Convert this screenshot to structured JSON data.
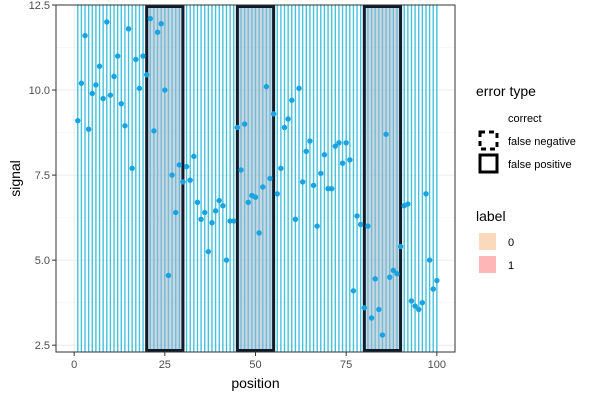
{
  "chart_data": {
    "type": "scatter",
    "xlabel": "position",
    "ylabel": "signal",
    "xlim": [
      -5,
      105
    ],
    "ylim": [
      2.3,
      12.5
    ],
    "x_ticks": [
      0,
      25,
      50,
      75,
      100
    ],
    "y_ticks": [
      2.5,
      5.0,
      7.5,
      10.0,
      12.5
    ],
    "x_tick_labels": [
      "0",
      "25",
      "50",
      "75",
      "100"
    ],
    "y_tick_labels": [
      "2.5",
      "5.0",
      "7.5",
      "10.0",
      "12.5"
    ],
    "grid": true,
    "legend_position": "right",
    "point_color": "#1aa3e0",
    "window_line_color": "#22b8d6",
    "label_0_fill": "#fbd9bd",
    "label_1_fill": "#ffb6b6",
    "highlight_fill": "#9ab6cc",
    "box_color": "#0d1b2a",
    "highlight_intervals": [
      [
        20,
        30
      ],
      [
        45,
        55
      ],
      [
        80,
        90
      ]
    ],
    "points": {
      "x": [
        1,
        2,
        3,
        4,
        5,
        6,
        7,
        8,
        9,
        10,
        11,
        12,
        13,
        14,
        15,
        16,
        17,
        18,
        19,
        20,
        21,
        22,
        23,
        24,
        25,
        26,
        27,
        28,
        29,
        30,
        31,
        32,
        33,
        34,
        35,
        36,
        37,
        38,
        39,
        40,
        41,
        42,
        43,
        44,
        45,
        46,
        47,
        48,
        49,
        50,
        51,
        52,
        53,
        54,
        55,
        56,
        57,
        58,
        59,
        60,
        61,
        62,
        63,
        64,
        65,
        66,
        67,
        68,
        69,
        70,
        71,
        72,
        73,
        74,
        75,
        76,
        77,
        78,
        79,
        80,
        81,
        82,
        83,
        84,
        85,
        86,
        87,
        88,
        89,
        90,
        91,
        92,
        93,
        94,
        95,
        96,
        97,
        98,
        99,
        100
      ],
      "y": [
        9.1,
        10.2,
        11.6,
        8.85,
        9.9,
        10.15,
        10.7,
        9.75,
        12.0,
        9.85,
        10.4,
        11.0,
        9.6,
        8.95,
        11.8,
        7.7,
        10.9,
        10.05,
        11.0,
        10.45,
        12.1,
        8.8,
        11.7,
        11.95,
        10.0,
        4.55,
        7.5,
        6.4,
        7.8,
        7.3,
        7.75,
        7.35,
        8.05,
        6.7,
        6.2,
        6.4,
        5.25,
        6.1,
        6.45,
        6.75,
        6.6,
        5.0,
        6.15,
        6.15,
        8.9,
        7.65,
        9.0,
        6.7,
        6.9,
        6.85,
        5.8,
        7.15,
        10.1,
        7.4,
        9.3,
        6.95,
        7.7,
        8.9,
        9.15,
        9.7,
        6.2,
        10.05,
        7.3,
        8.2,
        8.5,
        7.2,
        6.0,
        7.55,
        8.1,
        7.1,
        7.1,
        8.35,
        8.45,
        7.85,
        8.45,
        7.95,
        4.1,
        6.3,
        6.05,
        3.6,
        6.0,
        3.3,
        4.45,
        3.55,
        2.8,
        8.7,
        4.5,
        4.7,
        4.6,
        5.4,
        6.6,
        6.65,
        3.8,
        3.65,
        3.55,
        3.75,
        6.95,
        5.0,
        4.15,
        4.4
      ]
    },
    "legend": {
      "error_type": {
        "title": "error type",
        "items": [
          "correct",
          "false negative",
          "false positive"
        ]
      },
      "label": {
        "title": "label",
        "items": [
          "0",
          "1"
        ]
      }
    }
  }
}
